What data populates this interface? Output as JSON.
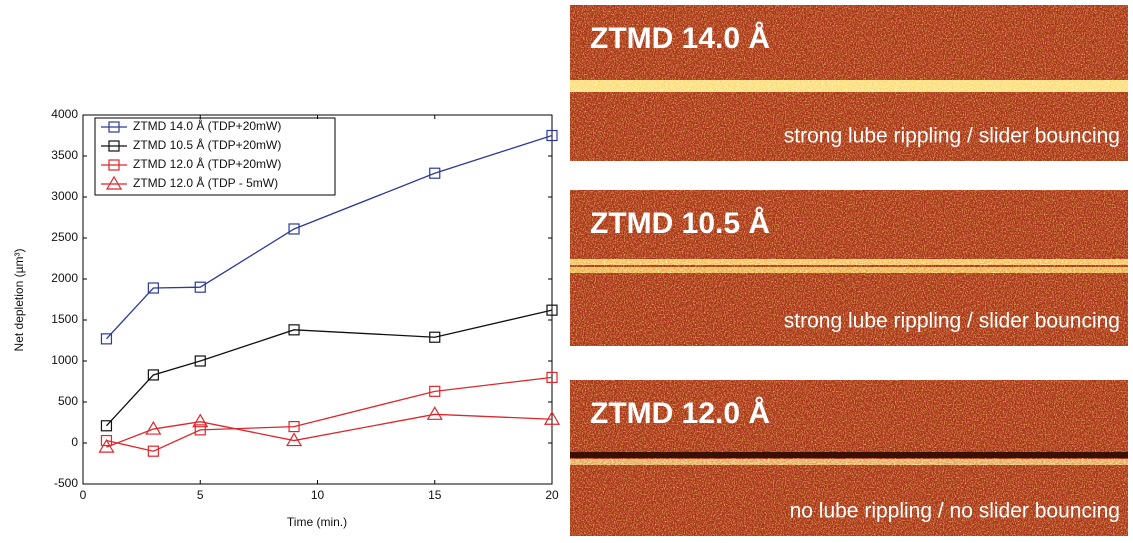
{
  "chart_data": {
    "type": "line",
    "xlabel": "Time (min.)",
    "ylabel": "Net depletion (µm³)",
    "x": [
      1,
      3,
      5,
      9,
      15,
      20
    ],
    "series": [
      {
        "name": "ZTMD 14.0 Å (TDP+20mW)",
        "color": "#2b3a9b",
        "marker": "square",
        "values": [
          1270,
          1890,
          1900,
          2610,
          3290,
          3750
        ]
      },
      {
        "name": "ZTMD 10.5 Å (TDP+20mW)",
        "color": "#111111",
        "marker": "square",
        "values": [
          210,
          830,
          1000,
          1380,
          1290,
          1620
        ]
      },
      {
        "name": "ZTMD 12.0 Å (TDP+20mW)",
        "color": "#e0262b",
        "marker": "square",
        "values": [
          30,
          -100,
          160,
          200,
          630,
          800
        ]
      },
      {
        "name": "ZTMD 12.0 Å (TDP -  5mW)",
        "color": "#e0262b",
        "marker": "triangle",
        "values": [
          -50,
          170,
          260,
          30,
          350,
          290
        ]
      }
    ],
    "xlim": [
      0,
      20
    ],
    "xticks": [
      0,
      5,
      10,
      15,
      20
    ],
    "ylim": [
      -500,
      4000
    ],
    "yticks": [
      -500,
      0,
      500,
      1000,
      1500,
      2000,
      2500,
      3000,
      3500,
      4000
    ],
    "grid": false,
    "legend": "upper left"
  },
  "panels": [
    {
      "title": "ZTMD 14.0 Å",
      "caption": "strong lube rippling / slider bouncing"
    },
    {
      "title": "ZTMD 10.5 Å",
      "caption": "strong lube rippling / slider bouncing"
    },
    {
      "title": "ZTMD 12.0 Å",
      "caption": "no lube rippling / no slider bouncing"
    }
  ]
}
